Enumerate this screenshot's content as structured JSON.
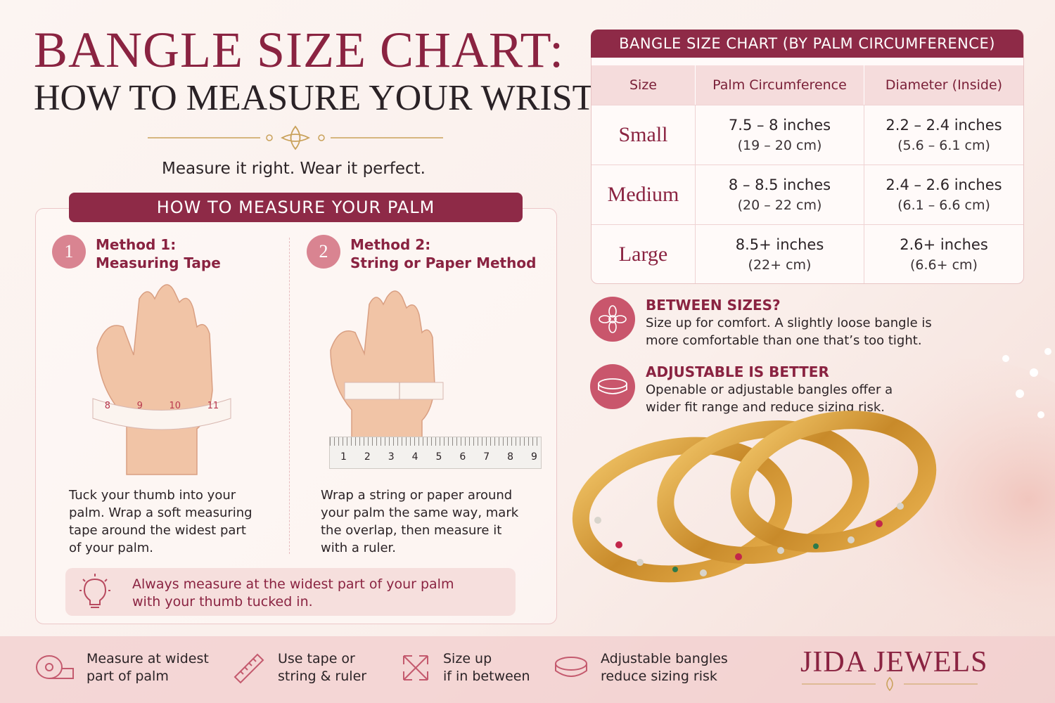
{
  "header": {
    "title": "BANGLE SIZE CHART:",
    "subtitle": "HOW TO MEASURE YOUR WRIST",
    "tagline": "Measure it right. Wear it perfect."
  },
  "measure": {
    "heading": "HOW TO MEASURE YOUR PALM",
    "methods": [
      {
        "number": "1",
        "title": "Method 1:",
        "subtitle": "Measuring Tape",
        "text": [
          "Tuck your thumb into your",
          "palm. Wrap a soft measuring",
          "tape around the widest part",
          "of your palm."
        ],
        "scale": [
          "8",
          "9",
          "10",
          "11"
        ]
      },
      {
        "number": "2",
        "title": "Method 2:",
        "subtitle": "String or Paper Method",
        "text": [
          "Wrap a string or paper around",
          "your palm the same way, mark",
          "the overlap, then measure it",
          "with a ruler."
        ],
        "scale": [
          "1",
          "2",
          "3",
          "4",
          "5",
          "6",
          "7",
          "8",
          "9"
        ]
      }
    ],
    "tip": [
      "Always measure at the widest part of your palm",
      "with your thumb tucked in."
    ]
  },
  "table": {
    "title": "BANGLE SIZE CHART (BY PALM CIRCUMFERENCE)",
    "columns": [
      "Size",
      "Palm Circumference",
      "Diameter (Inside)"
    ],
    "rows": [
      {
        "size": "Small",
        "palm": [
          "7.5 – 8 inches",
          "(19 – 20 cm)"
        ],
        "diameter": [
          "2.2 – 2.4 inches",
          "(5.6 – 6.1 cm)"
        ]
      },
      {
        "size": "Medium",
        "palm": [
          "8 – 8.5 inches",
          "(20 – 22 cm)"
        ],
        "diameter": [
          "2.4 – 2.6 inches",
          "(6.1 – 6.6 cm)"
        ]
      },
      {
        "size": "Large",
        "palm": [
          "8.5+ inches",
          "(22+ cm)"
        ],
        "diameter": [
          "2.6+ inches",
          "(6.6+ cm)"
        ]
      }
    ]
  },
  "tips": [
    {
      "title": "BETWEEN SIZES?",
      "text": [
        "Size up for comfort. A slightly loose bangle is",
        "more comfortable than one that’s too tight."
      ]
    },
    {
      "title": "ADJUSTABLE IS BETTER",
      "text": [
        "Openable or adjustable bangles offer a",
        "wider fit range and reduce sizing risk."
      ]
    }
  ],
  "footer": {
    "items": [
      [
        "Measure at widest",
        "part of palm"
      ],
      [
        "Use tape or",
        "string & ruler"
      ],
      [
        "Size up",
        "if in between"
      ],
      [
        "Adjustable bangles",
        "reduce sizing risk"
      ]
    ],
    "brand": "JIDA JEWELS"
  }
}
